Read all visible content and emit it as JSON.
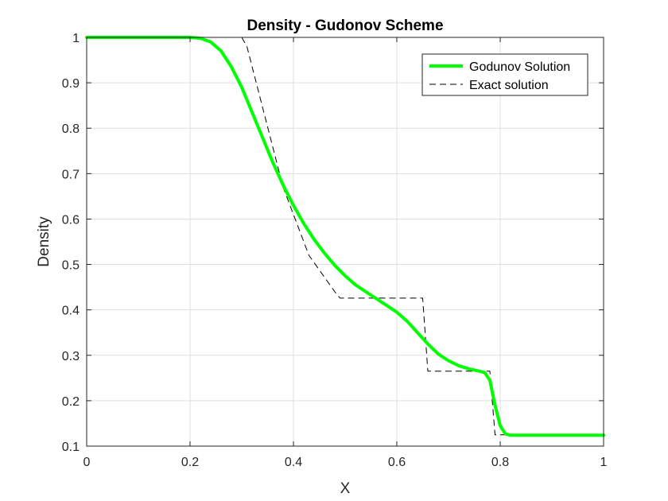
{
  "chart_data": {
    "type": "line",
    "title": "Density - Gudonov Scheme",
    "xlabel": "X",
    "ylabel": "Density",
    "xlim": [
      0,
      1
    ],
    "ylim": [
      0.1,
      1
    ],
    "xticks": [
      0,
      0.2,
      0.4,
      0.6,
      0.8,
      1
    ],
    "xtick_labels": [
      "0",
      "0.2",
      "0.4",
      "0.6",
      "0.8",
      "1"
    ],
    "yticks": [
      0.1,
      0.2,
      0.3,
      0.4,
      0.5,
      0.6,
      0.7,
      0.8,
      0.9,
      1
    ],
    "ytick_labels": [
      "0.1",
      "0.2",
      "0.3",
      "0.4",
      "0.5",
      "0.6",
      "0.7",
      "0.8",
      "0.9",
      "1"
    ],
    "grid": true,
    "legend_position": "top-right",
    "series": [
      {
        "name": "Godunov Solution",
        "color": "#00ff00",
        "style": "solid",
        "x": [
          0,
          0.1,
          0.2,
          0.22,
          0.24,
          0.26,
          0.28,
          0.3,
          0.32,
          0.34,
          0.36,
          0.38,
          0.4,
          0.42,
          0.44,
          0.46,
          0.48,
          0.5,
          0.52,
          0.54,
          0.56,
          0.58,
          0.6,
          0.62,
          0.64,
          0.66,
          0.68,
          0.7,
          0.72,
          0.74,
          0.76,
          0.77,
          0.78,
          0.79,
          0.8,
          0.81,
          0.82,
          0.85,
          0.9,
          1.0
        ],
        "y": [
          1.0,
          1.0,
          1.0,
          0.998,
          0.99,
          0.97,
          0.935,
          0.89,
          0.835,
          0.78,
          0.725,
          0.675,
          0.63,
          0.59,
          0.555,
          0.525,
          0.498,
          0.475,
          0.455,
          0.44,
          0.425,
          0.41,
          0.395,
          0.375,
          0.35,
          0.325,
          0.303,
          0.288,
          0.277,
          0.27,
          0.265,
          0.262,
          0.245,
          0.19,
          0.145,
          0.127,
          0.124,
          0.124,
          0.124,
          0.124
        ]
      },
      {
        "name": "Exact solution",
        "color": "#000000",
        "style": "dashed",
        "x": [
          0,
          0.2,
          0.3,
          0.31,
          0.38,
          0.43,
          0.48,
          0.49,
          0.65,
          0.66,
          0.78,
          0.79,
          1.0
        ],
        "y": [
          1.0,
          1.0,
          1.0,
          0.98,
          0.67,
          0.52,
          0.44,
          0.426,
          0.426,
          0.265,
          0.265,
          0.125,
          0.125
        ]
      }
    ]
  }
}
